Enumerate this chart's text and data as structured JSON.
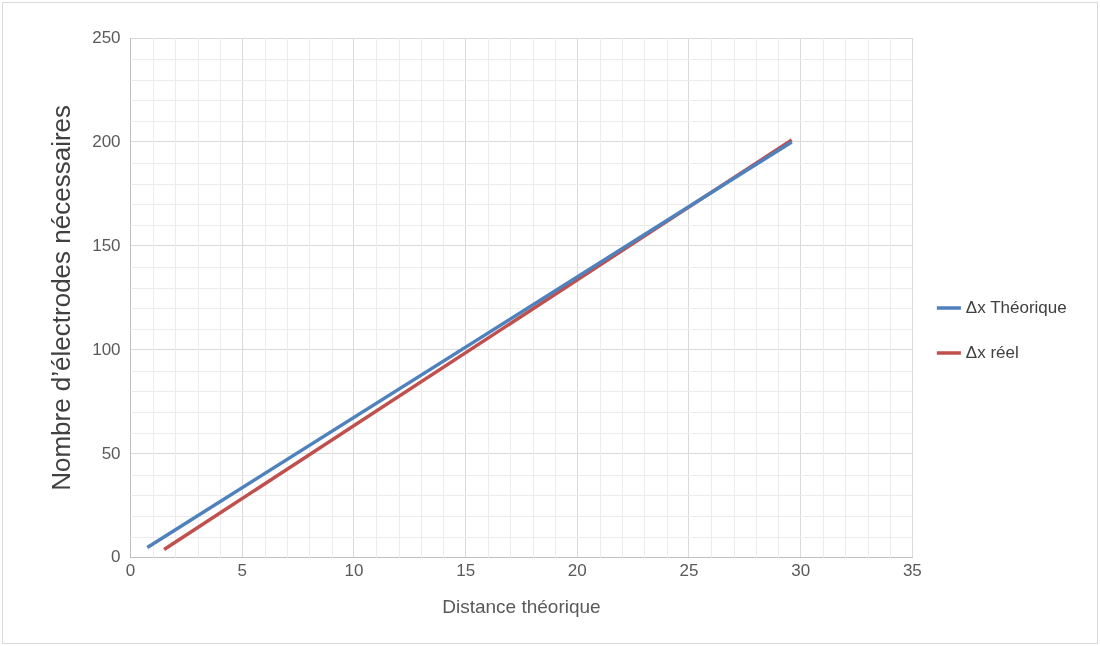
{
  "chart_data": {
    "type": "line",
    "xlabel": "Distance théorique",
    "ylabel": "Nombre d’électrodes nécessaires",
    "xlim": [
      0,
      35
    ],
    "xticks": [
      0,
      5,
      10,
      15,
      20,
      25,
      30,
      35
    ],
    "ylim": [
      0,
      250
    ],
    "yticks": [
      0,
      50,
      100,
      150,
      200,
      250
    ],
    "grid": true,
    "legend": "right",
    "marker": "none",
    "line_style": "solid",
    "series": [
      {
        "name": "Δx Théorique",
        "color": "#4f81bd",
        "x": [
          0.75,
          29.6
        ],
        "values": [
          5,
          200
        ]
      },
      {
        "name": "Δx réel",
        "color": "#c0504d",
        "x": [
          1.5,
          29.6
        ],
        "values": [
          4,
          201
        ]
      }
    ]
  }
}
